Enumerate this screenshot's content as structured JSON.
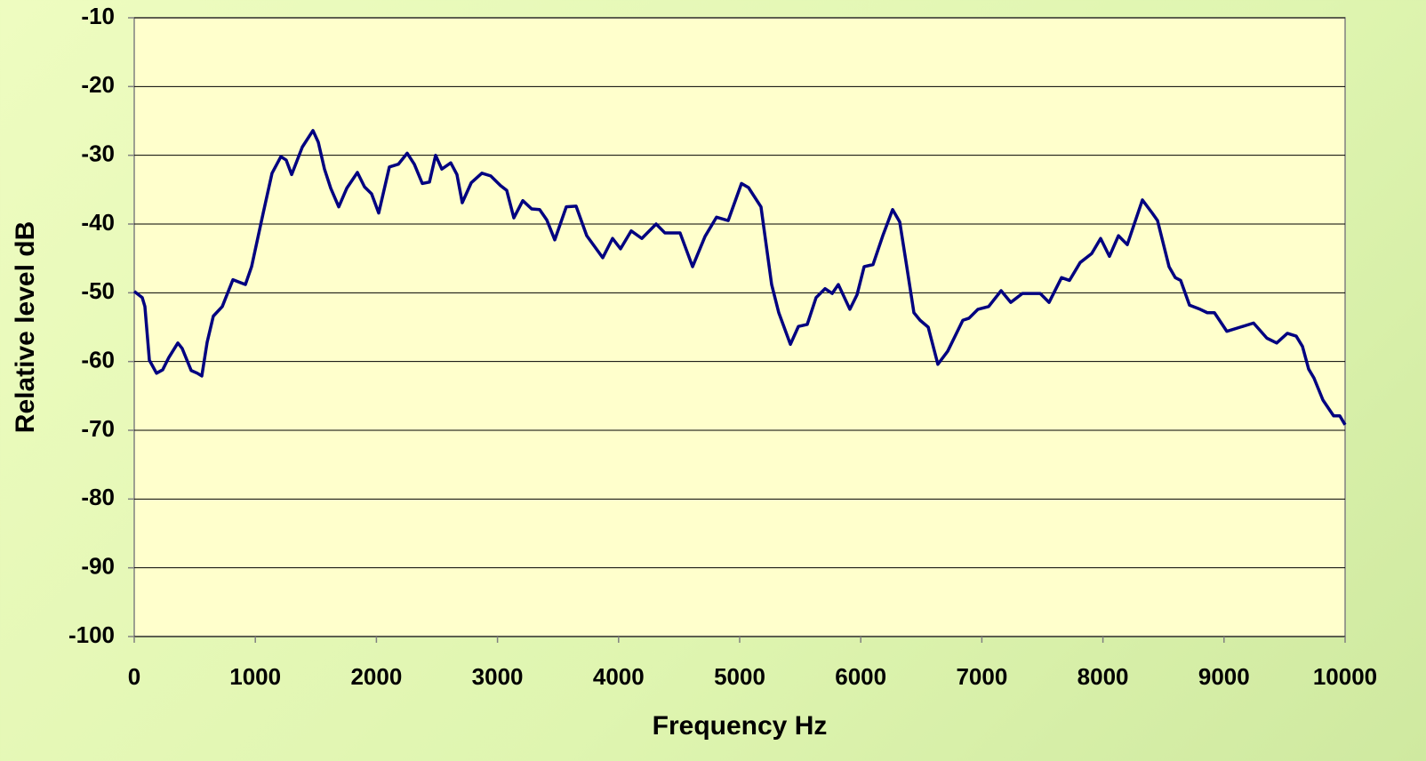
{
  "chart_data": {
    "type": "line",
    "xlabel": "Frequency Hz",
    "ylabel": "Relative level dB",
    "xlim": [
      0,
      10000
    ],
    "xticks": [
      0,
      1000,
      2000,
      3000,
      4000,
      5000,
      6000,
      7000,
      8000,
      9000,
      10000
    ],
    "ylim": [
      -100,
      -10
    ],
    "yticks": [
      -100,
      -90,
      -80,
      -70,
      -60,
      -50,
      -40,
      -30,
      -20,
      -10
    ],
    "grid": true,
    "series": [
      {
        "name": "Relative level dB",
        "color": "#000080",
        "x": [
          0,
          66,
          88,
          125,
          184,
          235,
          286,
          360,
          396,
          470,
          521,
          558,
          602,
          653,
          727,
          815,
          874,
          918,
          969,
          1065,
          1138,
          1211,
          1255,
          1300,
          1388,
          1476,
          1520,
          1571,
          1623,
          1689,
          1755,
          1843,
          1902,
          1960,
          2019,
          2107,
          2181,
          2254,
          2313,
          2379,
          2438,
          2489,
          2540,
          2614,
          2665,
          2709,
          2783,
          2871,
          2944,
          3025,
          3076,
          3135,
          3209,
          3282,
          3348,
          3407,
          3473,
          3568,
          3649,
          3737,
          3869,
          3950,
          4016,
          4104,
          4192,
          4310,
          4383,
          4508,
          4611,
          4714,
          4809,
          4905,
          5015,
          5073,
          5176,
          5264,
          5323,
          5419,
          5485,
          5558,
          5631,
          5705,
          5764,
          5815,
          5910,
          5969,
          6028,
          6101,
          6182,
          6263,
          6322,
          6380,
          6439,
          6490,
          6557,
          6637,
          6718,
          6843,
          6894,
          6968,
          7056,
          7159,
          7239,
          7335,
          7445,
          7482,
          7555,
          7658,
          7724,
          7812,
          7907,
          7981,
          8054,
          8128,
          8201,
          8326,
          8407,
          8451,
          8546,
          8598,
          8642,
          8715,
          8803,
          8862,
          8921,
          9023,
          9134,
          9244,
          9354,
          9435,
          9523,
          9596,
          9648,
          9699,
          9743,
          9817,
          9905,
          9956,
          10000
        ],
        "values": [
          -49.8,
          -50.7,
          -52,
          -59.8,
          -61.7,
          -61.2,
          -59.4,
          -57.3,
          -58.1,
          -61.3,
          -61.7,
          -62.1,
          -57.2,
          -53.4,
          -52,
          -48.1,
          -48.5,
          -48.8,
          -46.2,
          -38.4,
          -32.6,
          -30.2,
          -30.7,
          -32.8,
          -28.8,
          -26.4,
          -28.1,
          -32,
          -34.8,
          -37.5,
          -34.8,
          -32.5,
          -34.6,
          -35.6,
          -38.4,
          -31.7,
          -31.3,
          -29.7,
          -31.3,
          -34.1,
          -33.9,
          -30,
          -32,
          -31.1,
          -32.8,
          -36.9,
          -34,
          -32.6,
          -33,
          -34.4,
          -35.1,
          -39.1,
          -36.6,
          -37.8,
          -37.9,
          -39.4,
          -42.3,
          -37.5,
          -37.4,
          -41.7,
          -44.9,
          -42.1,
          -43.6,
          -41,
          -42.1,
          -40,
          -41.3,
          -41.3,
          -46.2,
          -41.8,
          -39,
          -39.5,
          -34.1,
          -34.7,
          -37.5,
          -48.8,
          -52.9,
          -57.5,
          -54.9,
          -54.6,
          -50.7,
          -49.4,
          -50.1,
          -48.8,
          -52.4,
          -50.3,
          -46.2,
          -45.9,
          -41.7,
          -37.9,
          -39.7,
          -46.2,
          -52.9,
          -54,
          -55,
          -60.4,
          -58.5,
          -54,
          -53.7,
          -52.4,
          -52,
          -49.7,
          -51.4,
          -50.1,
          -50.1,
          -50.1,
          -51.4,
          -47.8,
          -48.2,
          -45.6,
          -44.3,
          -42.1,
          -44.7,
          -41.7,
          -43,
          -36.5,
          -38.4,
          -39.5,
          -46.2,
          -47.8,
          -48.2,
          -51.8,
          -52.4,
          -52.9,
          -52.9,
          -55.6,
          -55,
          -54.4,
          -56.6,
          -57.3,
          -55.9,
          -56.3,
          -57.8,
          -61.1,
          -62.4,
          -65.6,
          -67.9,
          -67.9,
          -69.2
        ]
      }
    ]
  }
}
